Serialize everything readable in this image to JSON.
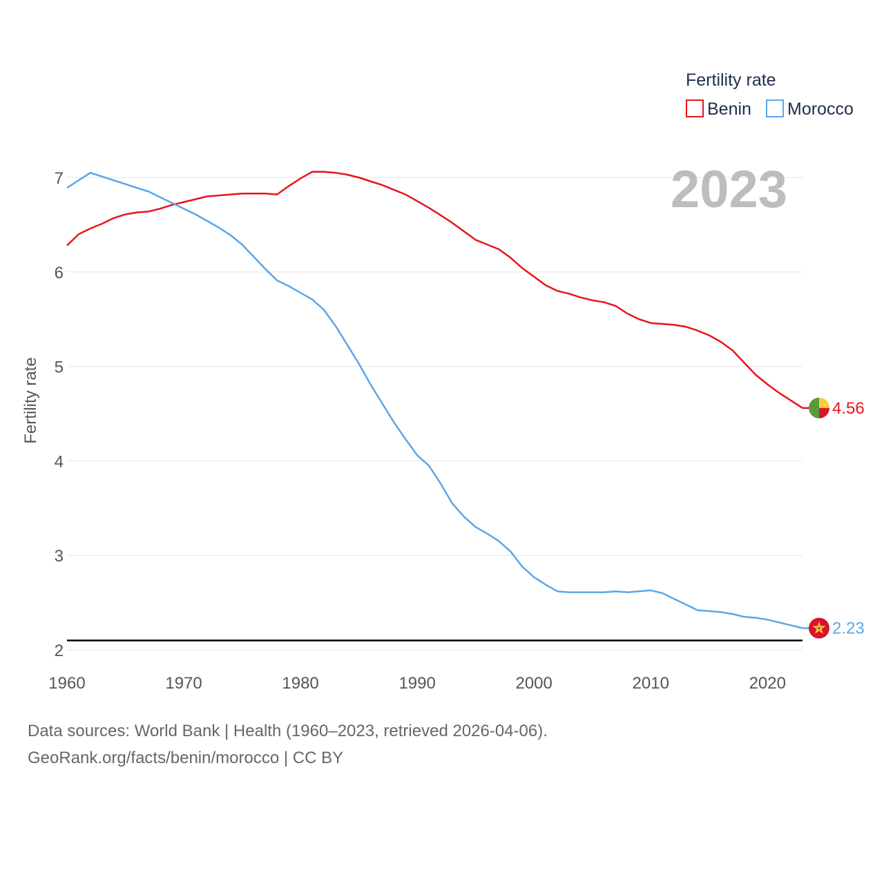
{
  "chart_data": {
    "type": "line",
    "title": "",
    "xlabel": "",
    "ylabel": "Fertility rate",
    "xlim": [
      1960,
      2023
    ],
    "ylim": [
      2,
      7.2
    ],
    "xticks": [
      1960,
      1970,
      1980,
      1990,
      2000,
      2010,
      2020
    ],
    "yticks": [
      2,
      3,
      4,
      5,
      6,
      7
    ],
    "grid": true,
    "reference_line": 2.1,
    "year_label": "2023",
    "legend": {
      "title": "Fertility rate",
      "position": "top-right"
    },
    "x": [
      1960,
      1961,
      1962,
      1963,
      1964,
      1965,
      1966,
      1967,
      1968,
      1969,
      1970,
      1971,
      1972,
      1973,
      1974,
      1975,
      1976,
      1977,
      1978,
      1979,
      1980,
      1981,
      1982,
      1983,
      1984,
      1985,
      1986,
      1987,
      1988,
      1989,
      1990,
      1991,
      1992,
      1993,
      1994,
      1995,
      1996,
      1997,
      1998,
      1999,
      2000,
      2001,
      2002,
      2003,
      2004,
      2005,
      2006,
      2007,
      2008,
      2009,
      2010,
      2011,
      2012,
      2013,
      2014,
      2015,
      2016,
      2017,
      2018,
      2019,
      2020,
      2021,
      2022,
      2023
    ],
    "series": [
      {
        "name": "Benin",
        "color": "#e8141c",
        "end_label": "4.56",
        "flag": "benin-flag",
        "values": [
          6.28,
          6.4,
          6.46,
          6.51,
          6.57,
          6.61,
          6.63,
          6.64,
          6.67,
          6.71,
          6.74,
          6.77,
          6.8,
          6.81,
          6.82,
          6.83,
          6.83,
          6.83,
          6.82,
          6.91,
          6.99,
          7.06,
          7.06,
          7.05,
          7.03,
          7.0,
          6.96,
          6.92,
          6.87,
          6.82,
          6.75,
          6.68,
          6.6,
          6.52,
          6.43,
          6.34,
          6.29,
          6.24,
          6.15,
          6.04,
          5.95,
          5.86,
          5.8,
          5.77,
          5.73,
          5.7,
          5.68,
          5.64,
          5.56,
          5.5,
          5.46,
          5.45,
          5.44,
          5.42,
          5.38,
          5.33,
          5.26,
          5.17,
          5.04,
          4.91,
          4.81,
          4.72,
          4.64,
          4.56
        ]
      },
      {
        "name": "Morocco",
        "color": "#5aa6e8",
        "end_label": "2.23",
        "flag": "morocco-flag",
        "values": [
          6.89,
          6.97,
          7.05,
          7.01,
          6.97,
          6.93,
          6.89,
          6.85,
          6.79,
          6.73,
          6.67,
          6.61,
          6.54,
          6.47,
          6.39,
          6.29,
          6.16,
          6.03,
          5.91,
          5.85,
          5.78,
          5.71,
          5.6,
          5.43,
          5.23,
          5.03,
          4.81,
          4.61,
          4.41,
          4.23,
          4.06,
          3.95,
          3.76,
          3.55,
          3.41,
          3.3,
          3.23,
          3.15,
          3.04,
          2.88,
          2.77,
          2.69,
          2.62,
          2.61,
          2.61,
          2.61,
          2.61,
          2.62,
          2.61,
          2.62,
          2.63,
          2.6,
          2.54,
          2.48,
          2.42,
          2.41,
          2.4,
          2.38,
          2.35,
          2.34,
          2.32,
          2.29,
          2.26,
          2.23
        ]
      }
    ]
  },
  "footer": {
    "line1": "Data sources: World Bank | Health (1960–2023, retrieved 2026-04-06).",
    "line2": "GeoRank.org/facts/benin/morocco | CC BY"
  }
}
